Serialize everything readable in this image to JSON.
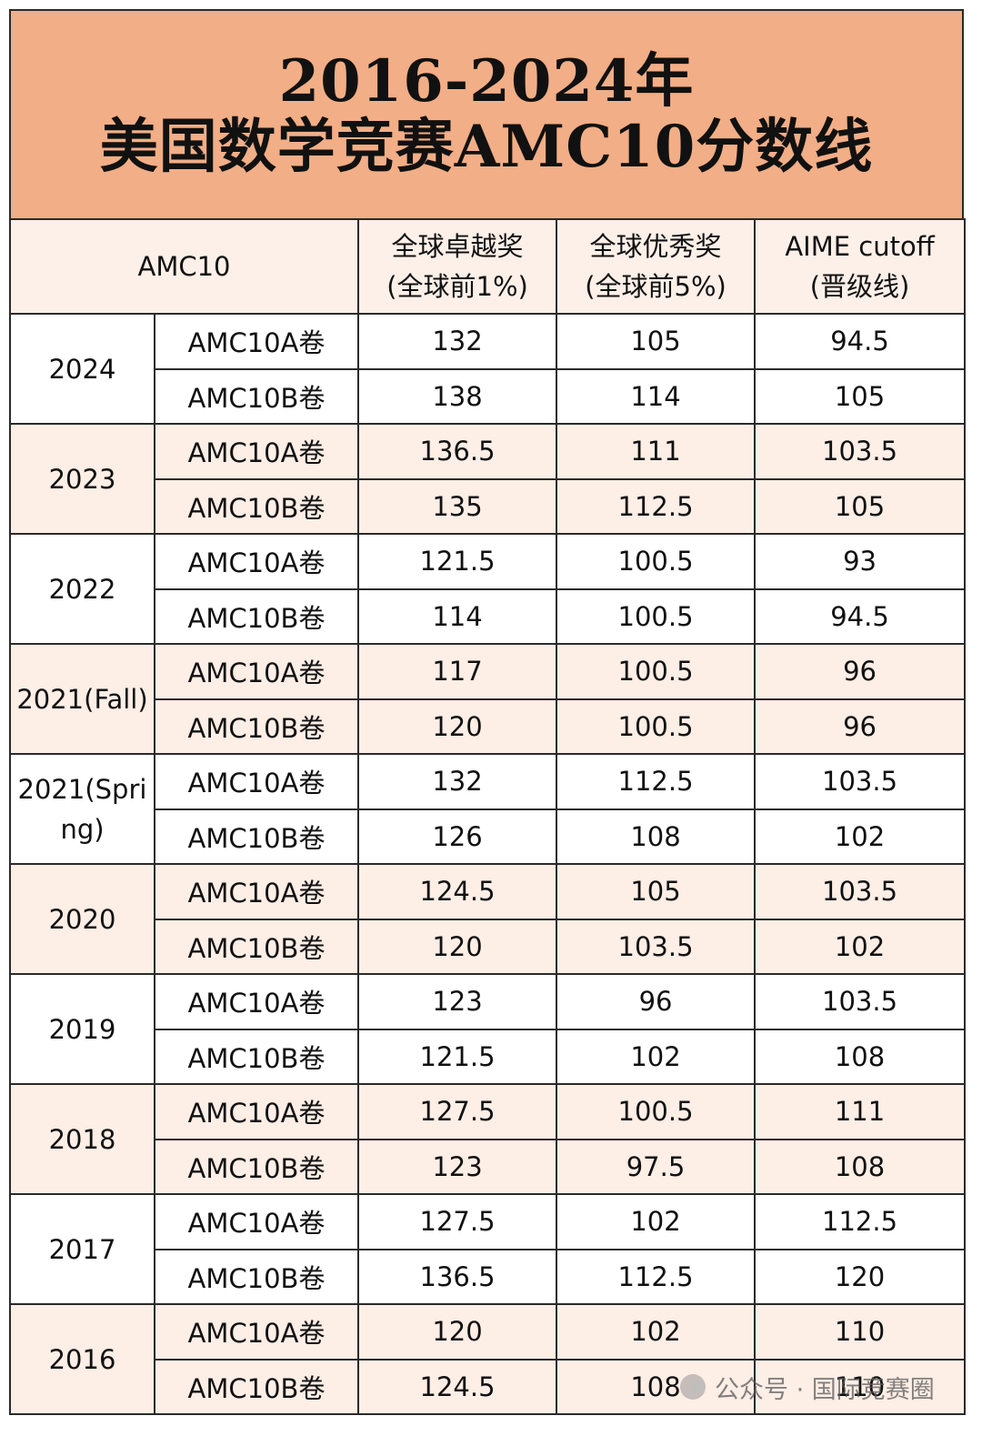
{
  "title": {
    "line1": "2016-2024年",
    "line2": "美国数学竞赛AMC10分数线"
  },
  "header": {
    "corner": "AMC10",
    "col1": [
      "全球卓越奖",
      "(全球前1%)"
    ],
    "col2": [
      "全球优秀奖",
      "(全球前5%)"
    ],
    "col3": [
      "AIME cutoff",
      "(晋级线)"
    ]
  },
  "rows": [
    {
      "year": [
        "2024"
      ],
      "a": [
        "AMC10A卷",
        "132",
        "105",
        "94.5"
      ],
      "b": [
        "AMC10B卷",
        "138",
        "114",
        "105"
      ]
    },
    {
      "year": [
        "2023"
      ],
      "a": [
        "AMC10A卷",
        "136.5",
        "111",
        "103.5"
      ],
      "b": [
        "AMC10B卷",
        "135",
        "112.5",
        "105"
      ]
    },
    {
      "year": [
        "2022"
      ],
      "a": [
        "AMC10A卷",
        "121.5",
        "100.5",
        "93"
      ],
      "b": [
        "AMC10B卷",
        "114",
        "100.5",
        "94.5"
      ]
    },
    {
      "year": [
        "2021(Fall)"
      ],
      "a": [
        "AMC10A卷",
        "117",
        "100.5",
        "96"
      ],
      "b": [
        "AMC10B卷",
        "120",
        "100.5",
        "96"
      ]
    },
    {
      "year": [
        "2021(Spri",
        "ng)"
      ],
      "a": [
        "AMC10A卷",
        "132",
        "112.5",
        "103.5"
      ],
      "b": [
        "AMC10B卷",
        "126",
        "108",
        "102"
      ]
    },
    {
      "year": [
        "2020"
      ],
      "a": [
        "AMC10A卷",
        "124.5",
        "105",
        "103.5"
      ],
      "b": [
        "AMC10B卷",
        "120",
        "103.5",
        "102"
      ]
    },
    {
      "year": [
        "2019"
      ],
      "a": [
        "AMC10A卷",
        "123",
        "96",
        "103.5"
      ],
      "b": [
        "AMC10B卷",
        "121.5",
        "102",
        "108"
      ]
    },
    {
      "year": [
        "2018"
      ],
      "a": [
        "AMC10A卷",
        "127.5",
        "100.5",
        "111"
      ],
      "b": [
        "AMC10B卷",
        "123",
        "97.5",
        "108"
      ]
    },
    {
      "year": [
        "2017"
      ],
      "a": [
        "AMC10A卷",
        "127.5",
        "102",
        "112.5"
      ],
      "b": [
        "AMC10B卷",
        "136.5",
        "112.5",
        "120"
      ]
    },
    {
      "year": [
        "2016"
      ],
      "a": [
        "AMC10A卷",
        "120",
        "102",
        "110"
      ],
      "b": [
        "AMC10B卷",
        "124.5",
        "108",
        "110"
      ]
    }
  ],
  "watermark": "公众号 · 国际竞赛圈",
  "colors": {
    "title_bg": "#f2ae86",
    "shade_bg": "#fdeee6",
    "border": "#2a2a2a"
  }
}
